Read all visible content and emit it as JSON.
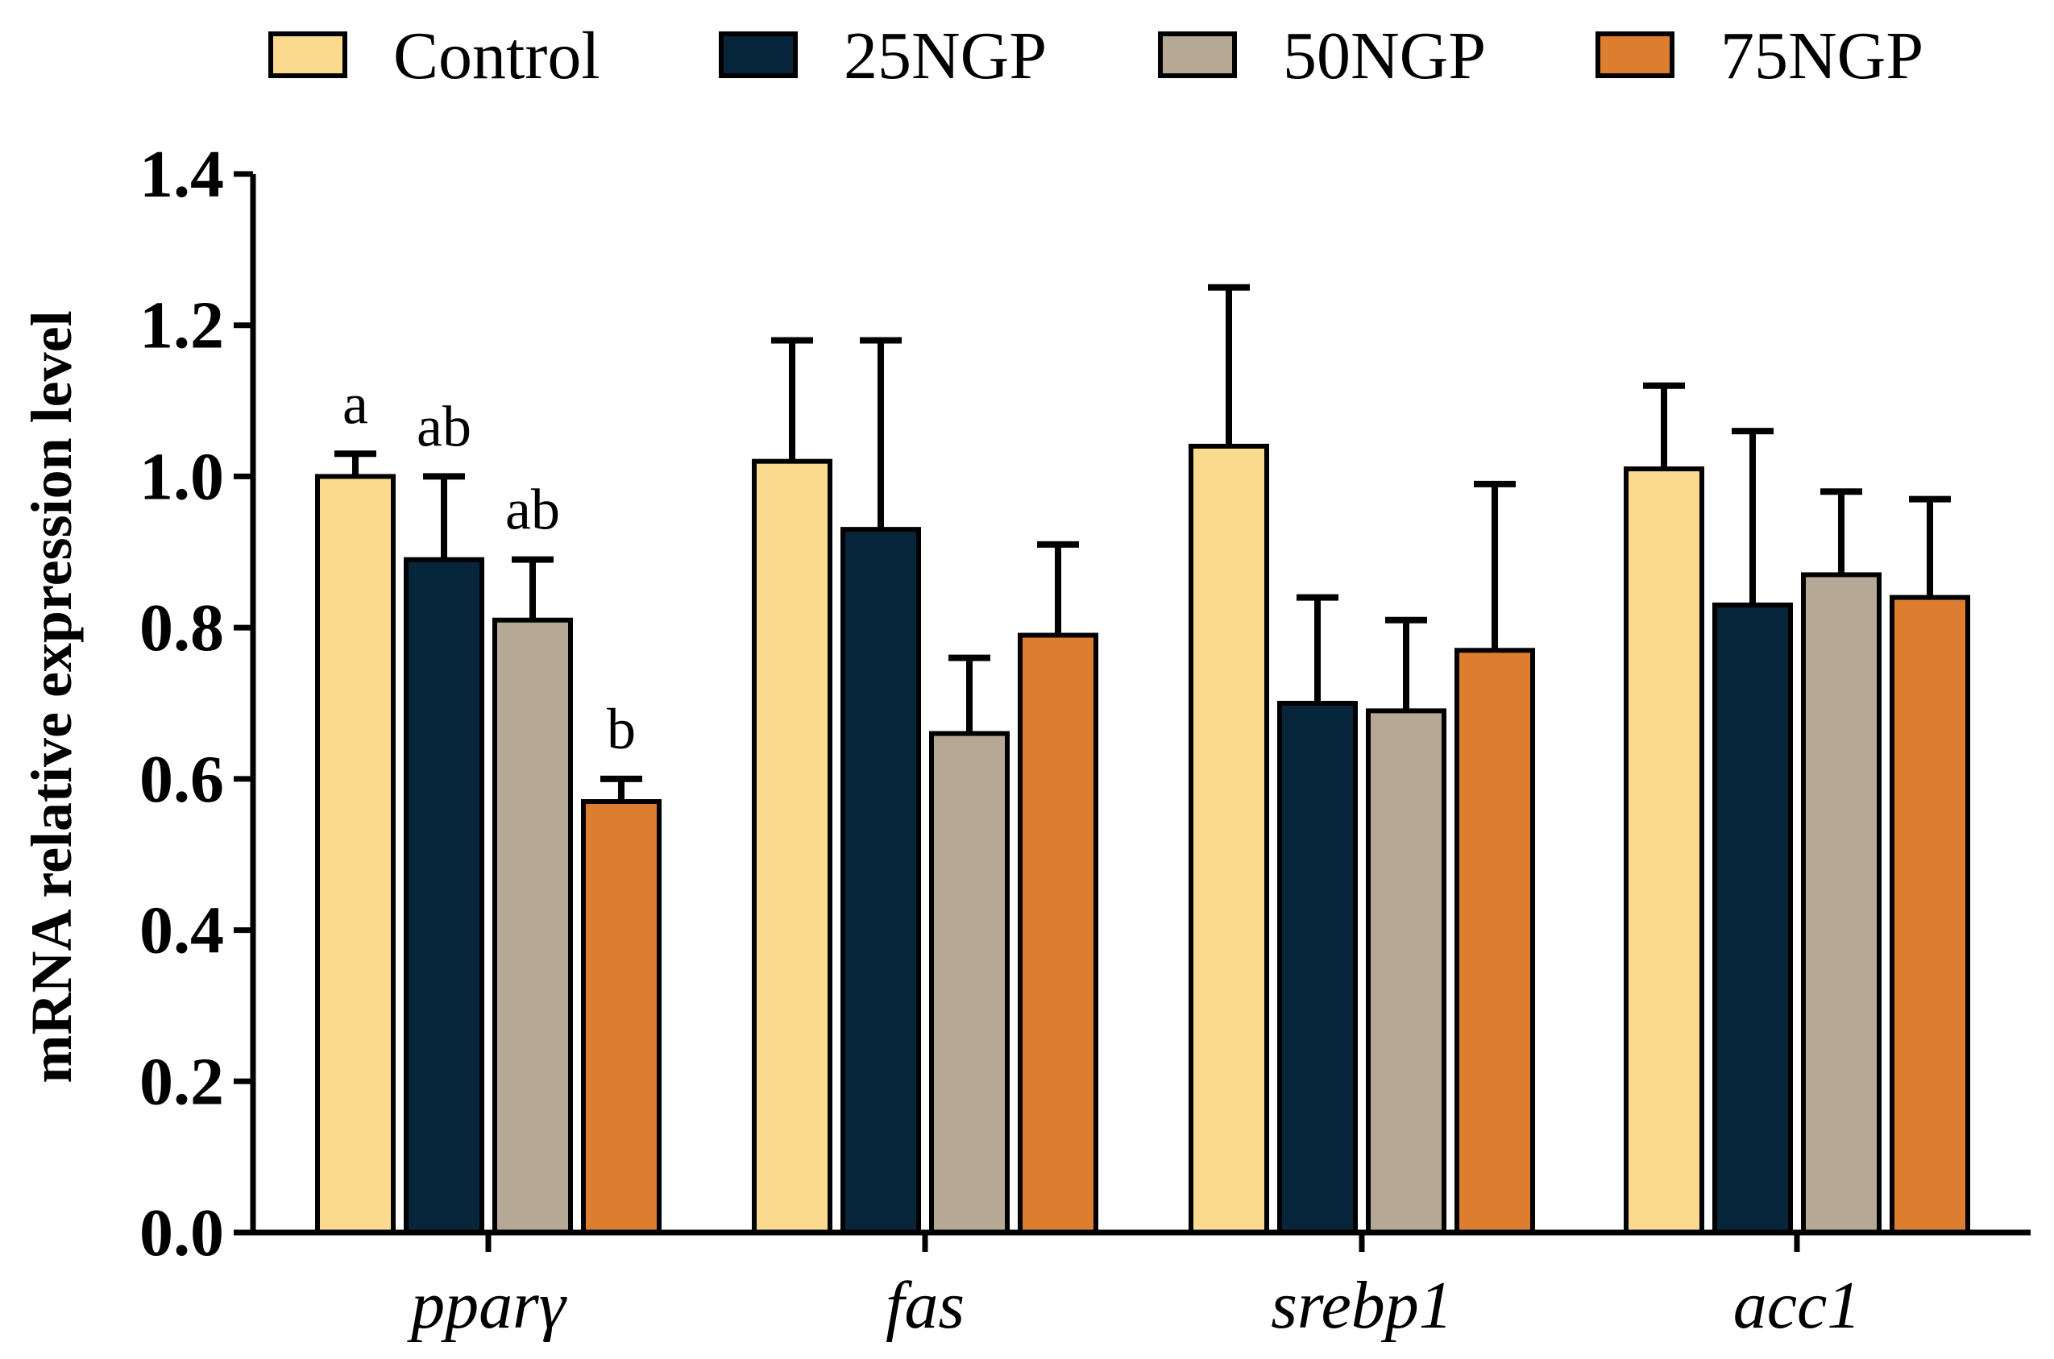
{
  "chart_data": {
    "type": "bar",
    "title": "",
    "xlabel": "",
    "ylabel": "mRNA relative expression level",
    "ylim": [
      0,
      1.4
    ],
    "yticks": [
      "0.0",
      "0.2",
      "0.4",
      "0.6",
      "0.8",
      "1.0",
      "1.2",
      "1.4"
    ],
    "legend_position": "top",
    "grid": false,
    "categories": [
      "pparγ",
      "fas",
      "srebp1",
      "acc1"
    ],
    "series": [
      {
        "name": "Control",
        "color": "#F9DA8E",
        "values": [
          1.0,
          1.02,
          1.04,
          1.01
        ],
        "errors": [
          0.03,
          0.16,
          0.21,
          0.11
        ],
        "labels": [
          "a",
          "",
          "",
          ""
        ]
      },
      {
        "name": "25NGP",
        "color": "#06253A",
        "values": [
          0.89,
          0.93,
          0.7,
          0.83
        ],
        "errors": [
          0.11,
          0.25,
          0.14,
          0.23
        ],
        "labels": [
          "ab",
          "",
          "",
          ""
        ]
      },
      {
        "name": "50NGP",
        "color": "#B5A995",
        "values": [
          0.81,
          0.66,
          0.69,
          0.87
        ],
        "errors": [
          0.08,
          0.1,
          0.12,
          0.11
        ],
        "labels": [
          "ab",
          "",
          "",
          ""
        ]
      },
      {
        "name": "75NGP",
        "color": "#DD7D30",
        "values": [
          0.57,
          0.79,
          0.77,
          0.84
        ],
        "errors": [
          0.03,
          0.12,
          0.22,
          0.13
        ],
        "labels": [
          "b",
          "",
          "",
          ""
        ]
      }
    ]
  }
}
